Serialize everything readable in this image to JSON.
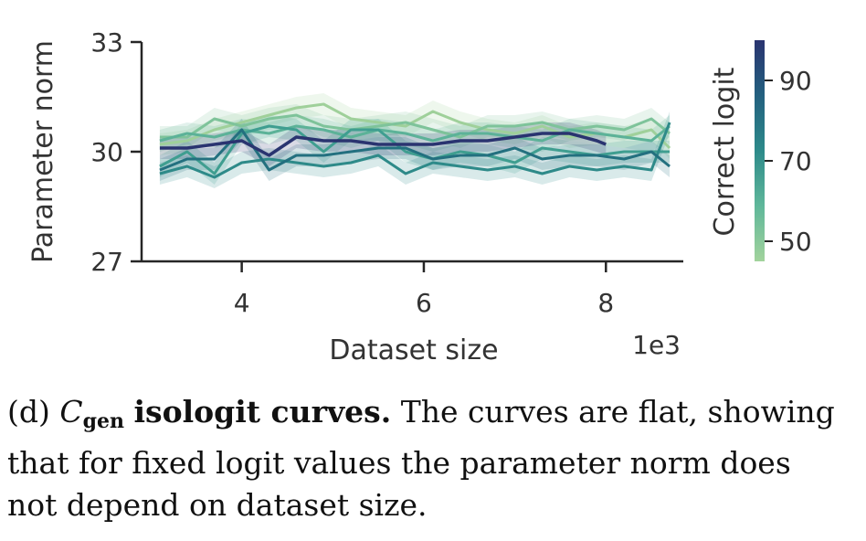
{
  "chart_data": {
    "type": "line",
    "xlabel": "Dataset size",
    "ylabel": "Parameter norm",
    "x_multiplier_label": "1e3",
    "xlim": [
      2.9,
      8.85
    ],
    "ylim": [
      27,
      33
    ],
    "xticks": [
      4,
      6,
      8
    ],
    "yticks": [
      27,
      30,
      33
    ],
    "grid": false,
    "colorbar": {
      "label": "Correct logit",
      "ticks": [
        50,
        70,
        90
      ],
      "range": [
        45,
        100
      ],
      "colors": [
        "#a2d39c",
        "#5fb79a",
        "#2d8a8a",
        "#23607f",
        "#2a3470"
      ]
    },
    "series": [
      {
        "color": "#9fd09a",
        "x": [
          3.1,
          3.4,
          3.7,
          4.0,
          4.3,
          4.6,
          4.9,
          5.2,
          5.5,
          5.8,
          6.1,
          6.4,
          6.7,
          7.0,
          7.3,
          7.6,
          7.9,
          8.2,
          8.5,
          8.7
        ],
        "y": [
          30.2,
          30.3,
          30.6,
          30.8,
          31.0,
          31.2,
          31.3,
          30.9,
          30.8,
          30.7,
          31.1,
          30.8,
          30.6,
          30.5,
          30.7,
          30.4,
          30.5,
          30.4,
          30.6,
          30.1
        ]
      },
      {
        "color": "#7ec39a",
        "x": [
          3.1,
          3.4,
          3.7,
          4.0,
          4.3,
          4.6,
          4.9,
          5.2,
          5.5,
          5.8,
          6.1,
          6.4,
          6.7,
          7.0,
          7.3,
          7.6,
          7.9,
          8.2,
          8.5,
          8.7
        ],
        "y": [
          30.4,
          30.4,
          30.9,
          30.7,
          30.9,
          31.0,
          30.7,
          30.6,
          30.7,
          30.8,
          30.6,
          30.4,
          30.7,
          30.7,
          30.8,
          30.6,
          30.7,
          30.6,
          30.9,
          30.5
        ]
      },
      {
        "color": "#5cb298",
        "x": [
          3.1,
          3.4,
          3.7,
          4.0,
          4.3,
          4.6,
          4.9,
          5.2,
          5.5,
          5.8,
          6.1,
          6.4,
          6.7,
          7.0,
          7.3,
          7.6,
          7.9,
          8.2,
          8.5,
          8.7
        ],
        "y": [
          30.3,
          30.5,
          30.4,
          30.6,
          30.5,
          30.7,
          30.6,
          30.4,
          30.6,
          30.5,
          30.3,
          30.5,
          30.5,
          30.4,
          30.3,
          30.6,
          30.5,
          30.4,
          30.3,
          30.7
        ]
      },
      {
        "color": "#3f9e90",
        "x": [
          3.1,
          3.4,
          3.7,
          4.0,
          4.3,
          4.6,
          4.9,
          5.2,
          5.5,
          5.8,
          6.1,
          6.4,
          6.7,
          7.0,
          7.3,
          7.6,
          7.9,
          8.2,
          8.5,
          8.7
        ],
        "y": [
          29.6,
          30.0,
          29.4,
          30.5,
          30.7,
          30.6,
          30.0,
          30.6,
          30.6,
          30.0,
          29.8,
          30.0,
          29.9,
          29.7,
          30.1,
          30.0,
          29.9,
          30.0,
          30.0,
          30.0
        ]
      },
      {
        "color": "#2e8a89",
        "x": [
          3.1,
          3.4,
          3.7,
          4.0,
          4.3,
          4.6,
          4.9,
          5.2,
          5.5,
          5.8,
          6.1,
          6.4,
          6.7,
          7.0,
          7.3,
          7.6,
          7.9,
          8.2,
          8.5,
          8.7
        ],
        "y": [
          29.4,
          29.6,
          29.3,
          29.7,
          29.8,
          29.7,
          29.6,
          29.7,
          29.9,
          29.4,
          29.7,
          29.6,
          29.5,
          29.6,
          29.4,
          29.6,
          29.5,
          29.6,
          29.5,
          30.8
        ]
      },
      {
        "color": "#23707f",
        "x": [
          3.1,
          3.4,
          3.7,
          4.0,
          4.3,
          4.6,
          4.9,
          5.2,
          5.5,
          5.8,
          6.1,
          6.4,
          6.7,
          7.0,
          7.3,
          7.6,
          7.9,
          8.2,
          8.5,
          8.7
        ],
        "y": [
          29.5,
          29.8,
          29.8,
          30.6,
          29.5,
          29.9,
          29.9,
          30.0,
          30.1,
          30.1,
          29.8,
          29.9,
          29.9,
          30.1,
          29.8,
          29.9,
          29.9,
          29.8,
          30.0,
          29.6
        ]
      },
      {
        "color": "#2a3470",
        "x": [
          3.1,
          3.4,
          3.7,
          4.0,
          4.3,
          4.6,
          4.9,
          5.2,
          5.5,
          5.8,
          6.1,
          6.4,
          6.7,
          7.0,
          7.3,
          7.6,
          7.9,
          8.0
        ],
        "y": [
          30.1,
          30.1,
          30.2,
          30.3,
          29.9,
          30.4,
          30.3,
          30.3,
          30.2,
          30.2,
          30.2,
          30.3,
          30.3,
          30.4,
          30.5,
          30.5,
          30.3,
          30.2
        ]
      }
    ]
  },
  "caption": {
    "label": "(d)",
    "symbol": "C",
    "subscript": "gen",
    "bold_title": "isologit curves.",
    "text": "The curves are flat, showing that for fixed logit values the parameter norm does not depend on dataset size."
  }
}
